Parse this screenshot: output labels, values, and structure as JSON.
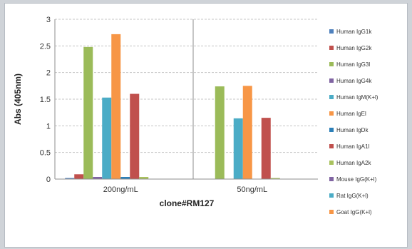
{
  "chart_data": {
    "type": "bar",
    "xlabel": "clone#RM127",
    "ylabel": "Abs (405nm)",
    "ylim": [
      0,
      3
    ],
    "yticks": [
      "0",
      "0.5",
      "1",
      "1.5",
      "2",
      "2.5",
      "3"
    ],
    "ytick_values": [
      0,
      0.5,
      1,
      1.5,
      2,
      2.5,
      3
    ],
    "grid": true,
    "legend_position": "right",
    "categories": [
      "200ng/mL",
      "50ng/mL"
    ],
    "series": [
      {
        "name": "Human IgG1k",
        "color": "#4f81bd",
        "values": [
          0.02,
          0.0
        ]
      },
      {
        "name": "Human IgG2k",
        "color": "#c0504d",
        "values": [
          0.09,
          0.0
        ]
      },
      {
        "name": "Human IgG3l",
        "color": "#9bbb59",
        "values": [
          2.48,
          1.74
        ]
      },
      {
        "name": "Human IgG4k",
        "color": "#8064a2",
        "values": [
          0.04,
          0.0
        ]
      },
      {
        "name": "Human IgM(K+l)",
        "color": "#4bacc6",
        "values": [
          1.53,
          1.14
        ]
      },
      {
        "name": "Human IgEl",
        "color": "#f79646",
        "values": [
          2.72,
          1.75
        ]
      },
      {
        "name": "Human IgDk",
        "color": "#2c7fb8",
        "values": [
          0.04,
          0.0
        ]
      },
      {
        "name": "Human IgA1l",
        "color": "#c0504d",
        "values": [
          1.6,
          1.15
        ]
      },
      {
        "name": "Human IgA2k",
        "color": "#a9c25e",
        "values": [
          0.04,
          0.02
        ]
      },
      {
        "name": "Mouse IgG(K+l)",
        "color": "#8064a2",
        "values": [
          0.0,
          0.0
        ]
      },
      {
        "name": "Rat IgG(K+l)",
        "color": "#4bacc6",
        "values": [
          0.0,
          0.0
        ]
      },
      {
        "name": "Goat IgG(K+l)",
        "color": "#f79646",
        "values": [
          0.0,
          0.0
        ]
      }
    ]
  }
}
